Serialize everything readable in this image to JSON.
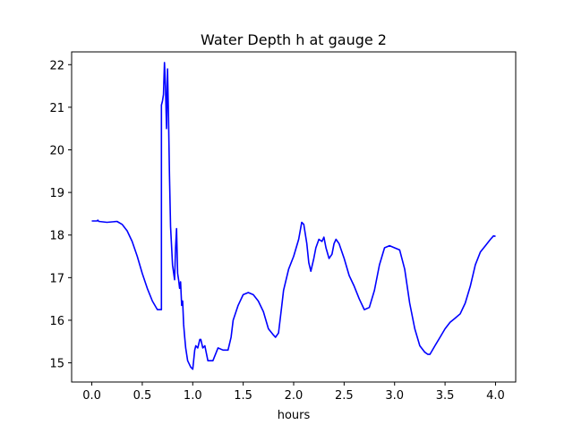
{
  "chart_data": {
    "type": "line",
    "title": "Water Depth h at gauge 2",
    "xlabel": "hours",
    "ylabel": "",
    "xlim": [
      -0.2,
      4.2
    ],
    "ylim": [
      14.55,
      22.3
    ],
    "xticks": [
      0.0,
      0.5,
      1.0,
      1.5,
      2.0,
      2.5,
      3.0,
      3.5,
      4.0
    ],
    "xtick_labels": [
      "0.0",
      "0.5",
      "1.0",
      "1.5",
      "2.0",
      "2.5",
      "3.0",
      "3.5",
      "4.0"
    ],
    "yticks": [
      15,
      16,
      17,
      18,
      19,
      20,
      21,
      22
    ],
    "ytick_labels": [
      "15",
      "16",
      "17",
      "18",
      "19",
      "20",
      "21",
      "22"
    ],
    "grid": false,
    "color": "#0000ff",
    "series": [
      {
        "x": [
          0.0,
          0.05,
          0.06,
          0.07,
          0.15,
          0.25,
          0.3,
          0.35,
          0.4,
          0.45,
          0.5,
          0.55,
          0.6,
          0.65,
          0.69,
          0.69,
          0.7,
          0.71,
          0.72,
          0.73,
          0.74,
          0.75,
          0.76,
          0.77,
          0.78,
          0.8,
          0.82,
          0.83,
          0.84,
          0.85,
          0.86,
          0.87,
          0.88,
          0.89,
          0.9,
          0.91,
          0.92,
          0.93,
          0.95,
          0.98,
          1.0,
          1.02,
          1.03,
          1.05,
          1.07,
          1.08,
          1.1,
          1.12,
          1.15,
          1.2,
          1.25,
          1.3,
          1.35,
          1.38,
          1.4,
          1.45,
          1.5,
          1.55,
          1.6,
          1.65,
          1.7,
          1.75,
          1.8,
          1.82,
          1.85,
          1.88,
          1.9,
          1.95,
          2.0,
          2.05,
          2.08,
          2.1,
          2.13,
          2.15,
          2.17,
          2.2,
          2.22,
          2.25,
          2.28,
          2.3,
          2.32,
          2.35,
          2.38,
          2.4,
          2.42,
          2.45,
          2.5,
          2.55,
          2.6,
          2.65,
          2.7,
          2.75,
          2.8,
          2.85,
          2.9,
          2.95,
          3.0,
          3.05,
          3.1,
          3.15,
          3.2,
          3.25,
          3.3,
          3.33,
          3.35,
          3.4,
          3.45,
          3.5,
          3.55,
          3.6,
          3.65,
          3.7,
          3.75,
          3.8,
          3.85,
          3.9,
          3.95,
          3.98,
          4.0
        ],
        "y": [
          18.33,
          18.33,
          18.35,
          18.32,
          18.3,
          18.32,
          18.25,
          18.1,
          17.85,
          17.5,
          17.1,
          16.75,
          16.45,
          16.25,
          16.25,
          21.05,
          21.15,
          21.3,
          22.05,
          21.5,
          20.5,
          21.9,
          20.8,
          19.4,
          18.2,
          17.3,
          16.95,
          17.7,
          18.15,
          17.1,
          16.95,
          16.75,
          16.9,
          16.35,
          16.45,
          15.9,
          15.6,
          15.35,
          15.05,
          14.9,
          14.85,
          15.3,
          15.4,
          15.35,
          15.55,
          15.55,
          15.35,
          15.4,
          15.05,
          15.05,
          15.35,
          15.3,
          15.3,
          15.6,
          16.0,
          16.35,
          16.6,
          16.65,
          16.6,
          16.45,
          16.2,
          15.8,
          15.65,
          15.6,
          15.7,
          16.3,
          16.7,
          17.2,
          17.5,
          17.9,
          18.3,
          18.25,
          17.8,
          17.35,
          17.15,
          17.45,
          17.7,
          17.9,
          17.85,
          17.95,
          17.7,
          17.45,
          17.55,
          17.8,
          17.9,
          17.8,
          17.45,
          17.05,
          16.8,
          16.5,
          16.25,
          16.3,
          16.7,
          17.3,
          17.7,
          17.75,
          17.7,
          17.65,
          17.2,
          16.4,
          15.8,
          15.4,
          15.25,
          15.2,
          15.2,
          15.4,
          15.6,
          15.8,
          15.95,
          16.05,
          16.15,
          16.4,
          16.8,
          17.3,
          17.6,
          17.75,
          17.9,
          17.98,
          17.97
        ]
      }
    ]
  }
}
